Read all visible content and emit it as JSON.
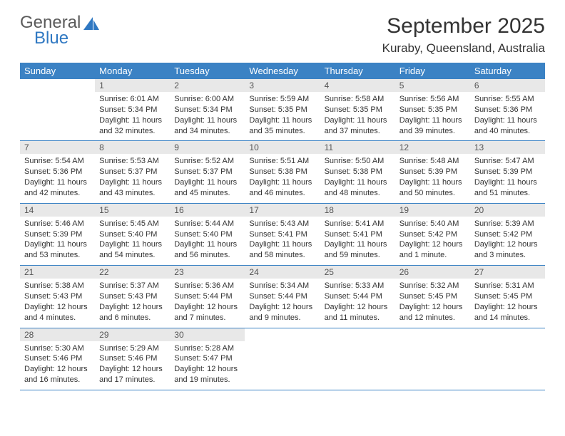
{
  "logo": {
    "word1": "General",
    "word2": "Blue"
  },
  "title": "September 2025",
  "location": "Kuraby, Queensland, Australia",
  "colors": {
    "header_bg": "#3b82c4",
    "header_text": "#ffffff",
    "daynum_bg": "#e8e8e8",
    "daynum_text": "#555555",
    "body_text": "#333333",
    "rule": "#3b82c4",
    "logo_gray": "#5a5a5a",
    "logo_blue": "#2f78c2",
    "page_bg": "#ffffff"
  },
  "fonts": {
    "family": "Arial",
    "title_pt": 30,
    "location_pt": 17,
    "th_pt": 13,
    "daynum_pt": 12,
    "body_pt": 11
  },
  "layout": {
    "columns": 7,
    "rows": 5,
    "first_weekday_index": 1
  },
  "weekdays": [
    "Sunday",
    "Monday",
    "Tuesday",
    "Wednesday",
    "Thursday",
    "Friday",
    "Saturday"
  ],
  "days": [
    {
      "n": "1",
      "sunrise": "6:01 AM",
      "sunset": "5:34 PM",
      "daylight": "11 hours and 32 minutes."
    },
    {
      "n": "2",
      "sunrise": "6:00 AM",
      "sunset": "5:34 PM",
      "daylight": "11 hours and 34 minutes."
    },
    {
      "n": "3",
      "sunrise": "5:59 AM",
      "sunset": "5:35 PM",
      "daylight": "11 hours and 35 minutes."
    },
    {
      "n": "4",
      "sunrise": "5:58 AM",
      "sunset": "5:35 PM",
      "daylight": "11 hours and 37 minutes."
    },
    {
      "n": "5",
      "sunrise": "5:56 AM",
      "sunset": "5:35 PM",
      "daylight": "11 hours and 39 minutes."
    },
    {
      "n": "6",
      "sunrise": "5:55 AM",
      "sunset": "5:36 PM",
      "daylight": "11 hours and 40 minutes."
    },
    {
      "n": "7",
      "sunrise": "5:54 AM",
      "sunset": "5:36 PM",
      "daylight": "11 hours and 42 minutes."
    },
    {
      "n": "8",
      "sunrise": "5:53 AM",
      "sunset": "5:37 PM",
      "daylight": "11 hours and 43 minutes."
    },
    {
      "n": "9",
      "sunrise": "5:52 AM",
      "sunset": "5:37 PM",
      "daylight": "11 hours and 45 minutes."
    },
    {
      "n": "10",
      "sunrise": "5:51 AM",
      "sunset": "5:38 PM",
      "daylight": "11 hours and 46 minutes."
    },
    {
      "n": "11",
      "sunrise": "5:50 AM",
      "sunset": "5:38 PM",
      "daylight": "11 hours and 48 minutes."
    },
    {
      "n": "12",
      "sunrise": "5:48 AM",
      "sunset": "5:39 PM",
      "daylight": "11 hours and 50 minutes."
    },
    {
      "n": "13",
      "sunrise": "5:47 AM",
      "sunset": "5:39 PM",
      "daylight": "11 hours and 51 minutes."
    },
    {
      "n": "14",
      "sunrise": "5:46 AM",
      "sunset": "5:39 PM",
      "daylight": "11 hours and 53 minutes."
    },
    {
      "n": "15",
      "sunrise": "5:45 AM",
      "sunset": "5:40 PM",
      "daylight": "11 hours and 54 minutes."
    },
    {
      "n": "16",
      "sunrise": "5:44 AM",
      "sunset": "5:40 PM",
      "daylight": "11 hours and 56 minutes."
    },
    {
      "n": "17",
      "sunrise": "5:43 AM",
      "sunset": "5:41 PM",
      "daylight": "11 hours and 58 minutes."
    },
    {
      "n": "18",
      "sunrise": "5:41 AM",
      "sunset": "5:41 PM",
      "daylight": "11 hours and 59 minutes."
    },
    {
      "n": "19",
      "sunrise": "5:40 AM",
      "sunset": "5:42 PM",
      "daylight": "12 hours and 1 minute."
    },
    {
      "n": "20",
      "sunrise": "5:39 AM",
      "sunset": "5:42 PM",
      "daylight": "12 hours and 3 minutes."
    },
    {
      "n": "21",
      "sunrise": "5:38 AM",
      "sunset": "5:43 PM",
      "daylight": "12 hours and 4 minutes."
    },
    {
      "n": "22",
      "sunrise": "5:37 AM",
      "sunset": "5:43 PM",
      "daylight": "12 hours and 6 minutes."
    },
    {
      "n": "23",
      "sunrise": "5:36 AM",
      "sunset": "5:44 PM",
      "daylight": "12 hours and 7 minutes."
    },
    {
      "n": "24",
      "sunrise": "5:34 AM",
      "sunset": "5:44 PM",
      "daylight": "12 hours and 9 minutes."
    },
    {
      "n": "25",
      "sunrise": "5:33 AM",
      "sunset": "5:44 PM",
      "daylight": "12 hours and 11 minutes."
    },
    {
      "n": "26",
      "sunrise": "5:32 AM",
      "sunset": "5:45 PM",
      "daylight": "12 hours and 12 minutes."
    },
    {
      "n": "27",
      "sunrise": "5:31 AM",
      "sunset": "5:45 PM",
      "daylight": "12 hours and 14 minutes."
    },
    {
      "n": "28",
      "sunrise": "5:30 AM",
      "sunset": "5:46 PM",
      "daylight": "12 hours and 16 minutes."
    },
    {
      "n": "29",
      "sunrise": "5:29 AM",
      "sunset": "5:46 PM",
      "daylight": "12 hours and 17 minutes."
    },
    {
      "n": "30",
      "sunrise": "5:28 AM",
      "sunset": "5:47 PM",
      "daylight": "12 hours and 19 minutes."
    }
  ],
  "labels": {
    "sunrise": "Sunrise:",
    "sunset": "Sunset:",
    "daylight": "Daylight:"
  }
}
